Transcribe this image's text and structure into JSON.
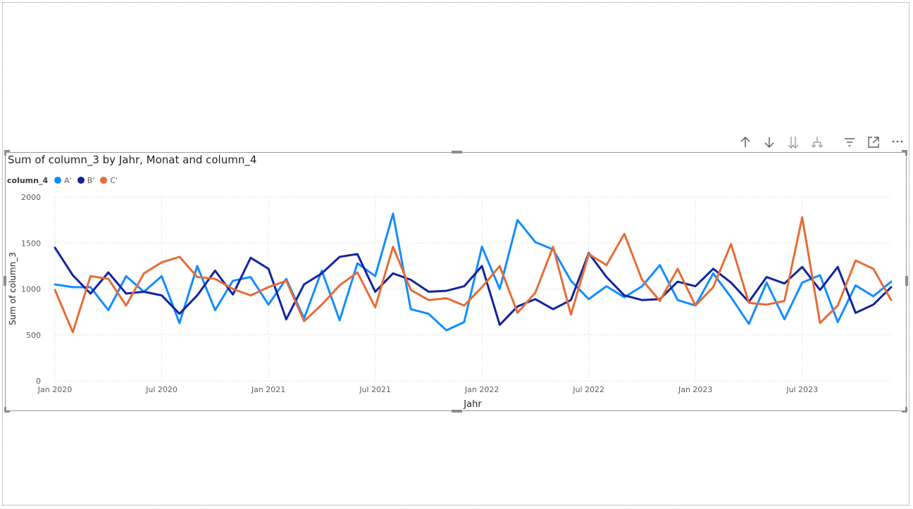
{
  "chart_data": {
    "type": "line",
    "title": "Sum of column_3 by Jahr, Monat and column_4",
    "xlabel": "Jahr",
    "ylabel": "Sum of column_3",
    "ylim": [
      0,
      2000
    ],
    "yticks": [
      "0",
      "500",
      "1000",
      "1500",
      "2000"
    ],
    "xticks": [
      "Jan 2020",
      "Jul 2020",
      "Jan 2021",
      "Jul 2021",
      "Jan 2022",
      "Jul 2022",
      "Jan 2023",
      "Jul 2023"
    ],
    "legend_title": "column_4",
    "legend_position": "top-left",
    "grid": true,
    "x": [
      "Jan 2020",
      "Feb 2020",
      "Mar 2020",
      "Apr 2020",
      "May 2020",
      "Jun 2020",
      "Jul 2020",
      "Aug 2020",
      "Sep 2020",
      "Oct 2020",
      "Nov 2020",
      "Dec 2020",
      "Jan 2021",
      "Feb 2021",
      "Mar 2021",
      "Apr 2021",
      "May 2021",
      "Jun 2021",
      "Jul 2021",
      "Aug 2021",
      "Sep 2021",
      "Oct 2021",
      "Nov 2021",
      "Dec 2021",
      "Jan 2022",
      "Feb 2022",
      "Mar 2022",
      "Apr 2022",
      "May 2022",
      "Jun 2022",
      "Jul 2022",
      "Aug 2022",
      "Sep 2022",
      "Oct 2022",
      "Nov 2022",
      "Dec 2022",
      "Jan 2023",
      "Feb 2023",
      "Mar 2023",
      "Apr 2023",
      "May 2023",
      "Jun 2023",
      "Jul 2023",
      "Aug 2023",
      "Sep 2023",
      "Oct 2023",
      "Nov 2023",
      "Dec 2023"
    ],
    "series": [
      {
        "name": "A'",
        "color": "#118DFF",
        "values": [
          1050,
          1020,
          1020,
          770,
          1140,
          970,
          1140,
          630,
          1250,
          770,
          1090,
          1130,
          830,
          1110,
          680,
          1200,
          660,
          1280,
          1140,
          1820,
          780,
          730,
          550,
          640,
          1460,
          1000,
          1750,
          1510,
          1430,
          1090,
          890,
          1030,
          910,
          1030,
          1260,
          880,
          820,
          1170,
          910,
          620,
          1070,
          670,
          1070,
          1150,
          640,
          1040,
          920,
          1080
        ]
      },
      {
        "name": "B'",
        "color": "#12239E",
        "values": [
          1450,
          1150,
          950,
          1180,
          950,
          970,
          930,
          730,
          930,
          1200,
          940,
          1340,
          1220,
          670,
          1050,
          1170,
          1350,
          1380,
          970,
          1170,
          1100,
          970,
          980,
          1030,
          1250,
          610,
          810,
          890,
          780,
          880,
          1390,
          1130,
          930,
          880,
          890,
          1080,
          1030,
          1220,
          1070,
          860,
          1130,
          1060,
          1240,
          990,
          1240,
          740,
          830,
          1020
        ]
      },
      {
        "name": "C'",
        "color": "#E66C37",
        "values": [
          990,
          530,
          1140,
          1110,
          820,
          1170,
          1290,
          1350,
          1130,
          1110,
          1000,
          930,
          1020,
          1090,
          650,
          830,
          1040,
          1180,
          800,
          1460,
          990,
          880,
          900,
          820,
          1020,
          1250,
          740,
          960,
          1460,
          720,
          1380,
          1260,
          1600,
          1100,
          870,
          1220,
          820,
          1020,
          1490,
          850,
          830,
          870,
          1780,
          630,
          820,
          1310,
          1220,
          880
        ]
      }
    ]
  },
  "toolbar": {
    "icons": [
      "arrow-up-icon",
      "arrow-down-icon",
      "double-arrow-down-icon",
      "expand-hierarchy-icon",
      "filter-icon",
      "focus-mode-icon",
      "more-options-icon"
    ]
  },
  "colors": {
    "frame": "#9a9a9a",
    "grid": "#d9d9d9",
    "axis_text": "#605e5c",
    "title_text": "#252423"
  }
}
